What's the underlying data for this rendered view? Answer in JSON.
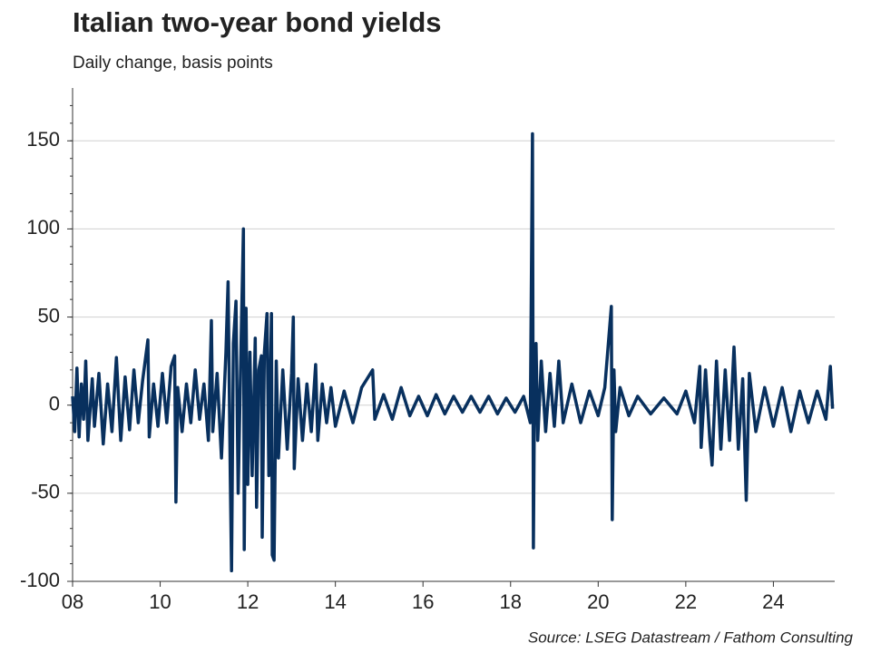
{
  "chart_data": {
    "type": "line",
    "title": "Italian two-year bond yields",
    "subtitle": "Daily change, basis points",
    "source": "Source: LSEG Datastream / Fathom Consulting",
    "x": [
      2008.0,
      2008.05,
      2008.1,
      2008.15,
      2008.2,
      2008.25,
      2008.3,
      2008.35,
      2008.45,
      2008.5,
      2008.6,
      2008.7,
      2008.8,
      2008.9,
      2009.0,
      2009.1,
      2009.2,
      2009.3,
      2009.4,
      2009.5,
      2009.6,
      2009.72,
      2009.75,
      2009.85,
      2009.95,
      2010.05,
      2010.15,
      2010.25,
      2010.33,
      2010.36,
      2010.4,
      2010.5,
      2010.6,
      2010.7,
      2010.8,
      2010.9,
      2011.0,
      2011.1,
      2011.17,
      2011.2,
      2011.3,
      2011.4,
      2011.5,
      2011.55,
      2011.6,
      2011.63,
      2011.67,
      2011.73,
      2011.78,
      2011.85,
      2011.9,
      2011.92,
      2011.96,
      2012.0,
      2012.05,
      2012.1,
      2012.17,
      2012.2,
      2012.25,
      2012.31,
      2012.33,
      2012.38,
      2012.44,
      2012.48,
      2012.54,
      2012.56,
      2012.6,
      2012.65,
      2012.7,
      2012.8,
      2012.9,
      2013.0,
      2013.04,
      2013.06,
      2013.15,
      2013.25,
      2013.35,
      2013.45,
      2013.55,
      2013.6,
      2013.7,
      2013.8,
      2013.9,
      2014.0,
      2014.2,
      2014.4,
      2014.6,
      2014.85,
      2014.9,
      2015.1,
      2015.3,
      2015.5,
      2015.7,
      2015.9,
      2016.1,
      2016.3,
      2016.5,
      2016.7,
      2016.9,
      2017.1,
      2017.3,
      2017.5,
      2017.7,
      2017.9,
      2018.1,
      2018.3,
      2018.45,
      2018.5,
      2018.52,
      2018.55,
      2018.58,
      2018.62,
      2018.7,
      2018.8,
      2018.9,
      2019.0,
      2019.1,
      2019.2,
      2019.4,
      2019.6,
      2019.8,
      2020.0,
      2020.15,
      2020.3,
      2020.32,
      2020.36,
      2020.4,
      2020.5,
      2020.7,
      2020.9,
      2021.2,
      2021.5,
      2021.8,
      2022.0,
      2022.2,
      2022.32,
      2022.35,
      2022.45,
      2022.55,
      2022.6,
      2022.7,
      2022.8,
      2022.9,
      2023.0,
      2023.1,
      2023.2,
      2023.3,
      2023.38,
      2023.45,
      2023.6,
      2023.8,
      2024.0,
      2024.2,
      2024.4,
      2024.6,
      2024.8,
      2025.0,
      2025.2,
      2025.3,
      2025.35
    ],
    "series": [
      {
        "name": "Daily change",
        "color": "#08305e",
        "values": [
          5,
          -15,
          21,
          -18,
          12,
          -8,
          25,
          -20,
          15,
          -12,
          18,
          -22,
          12,
          -15,
          27,
          -20,
          16,
          -14,
          20,
          -10,
          14,
          37,
          -18,
          12,
          -12,
          18,
          -10,
          22,
          28,
          -55,
          10,
          -15,
          12,
          -10,
          20,
          -8,
          12,
          -20,
          48,
          -15,
          18,
          -30,
          30,
          70,
          -40,
          -94,
          35,
          59,
          -50,
          40,
          100,
          -82,
          55,
          -45,
          30,
          -40,
          38,
          -58,
          20,
          28,
          -75,
          30,
          52,
          -40,
          52,
          -85,
          -88,
          25,
          -30,
          20,
          -25,
          18,
          50,
          -36,
          15,
          -20,
          12,
          -15,
          23,
          -20,
          12,
          -10,
          10,
          -12,
          8,
          -10,
          10,
          20,
          -8,
          6,
          -8,
          10,
          -6,
          5,
          -6,
          6,
          -5,
          5,
          -4,
          5,
          -4,
          5,
          -5,
          4,
          -4,
          5,
          -10,
          154,
          -81,
          20,
          35,
          -20,
          25,
          -15,
          18,
          -12,
          25,
          -10,
          12,
          -10,
          8,
          -6,
          10,
          56,
          -65,
          20,
          -15,
          10,
          -6,
          5,
          -5,
          4,
          -5,
          8,
          -10,
          22,
          -24,
          20,
          -20,
          -34,
          25,
          -25,
          20,
          -20,
          33,
          -25,
          15,
          -54,
          18,
          -15,
          10,
          -12,
          10,
          -15,
          8,
          -10,
          8,
          -8,
          22,
          -2
        ]
      }
    ],
    "xlim": [
      2008,
      2025.4
    ],
    "xticks": [
      {
        "value": 2008,
        "label": "08"
      },
      {
        "value": 2010,
        "label": "10"
      },
      {
        "value": 2012,
        "label": "12"
      },
      {
        "value": 2014,
        "label": "14"
      },
      {
        "value": 2016,
        "label": "16"
      },
      {
        "value": 2018,
        "label": "18"
      },
      {
        "value": 2020,
        "label": "20"
      },
      {
        "value": 2022,
        "label": "22"
      },
      {
        "value": 2024,
        "label": "24"
      }
    ],
    "ylim": [
      -100,
      180
    ],
    "yticks": [
      -100,
      -50,
      0,
      50,
      100,
      150
    ],
    "grid": true
  }
}
